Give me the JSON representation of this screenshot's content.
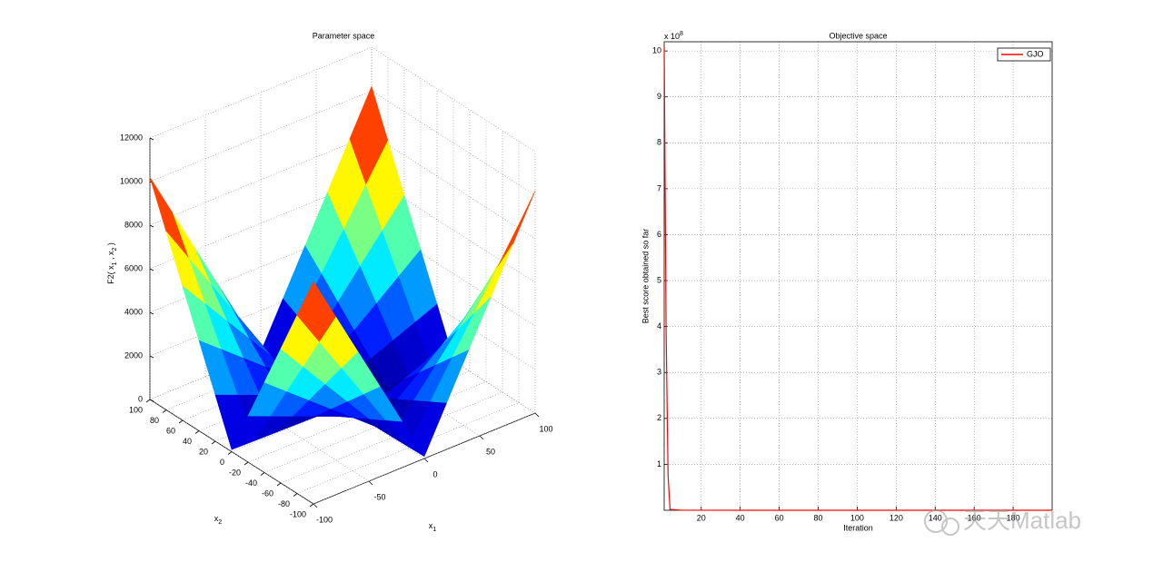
{
  "chart_data": [
    {
      "type": "surface",
      "title": "Parameter space",
      "xlabel": [
        "x",
        "1"
      ],
      "ylabel": [
        "x",
        "2"
      ],
      "zlabel": [
        "F2( x",
        "1",
        " , x",
        "2",
        " )"
      ],
      "x": [
        -100,
        -80,
        -60,
        -40,
        -20,
        0,
        20,
        40,
        60,
        80,
        100
      ],
      "y": [
        -100,
        -80,
        -60,
        -40,
        -20,
        0,
        20,
        40,
        60,
        80,
        100
      ],
      "z": [
        [
          10200,
          8180,
          6160,
          4140,
          2120,
          100,
          2120,
          4140,
          6160,
          8180,
          10200
        ],
        [
          8180,
          6560,
          4940,
          3320,
          1700,
          80,
          1700,
          3320,
          4940,
          6560,
          8180
        ],
        [
          6160,
          4940,
          3720,
          2500,
          1280,
          60,
          1280,
          2500,
          3720,
          4940,
          6160
        ],
        [
          4140,
          3320,
          2500,
          1680,
          860,
          40,
          860,
          1680,
          2500,
          3320,
          4140
        ],
        [
          2120,
          1700,
          1280,
          860,
          440,
          20,
          440,
          860,
          1280,
          1700,
          2120
        ],
        [
          100,
          80,
          60,
          40,
          20,
          0,
          20,
          40,
          60,
          80,
          100
        ],
        [
          2120,
          1700,
          1280,
          860,
          440,
          20,
          440,
          860,
          1280,
          1700,
          2120
        ],
        [
          4140,
          3320,
          2500,
          1680,
          860,
          40,
          860,
          1680,
          2500,
          3320,
          4140
        ],
        [
          6160,
          4940,
          3720,
          2500,
          1280,
          60,
          1280,
          2500,
          3720,
          4940,
          6160
        ],
        [
          8180,
          6560,
          4940,
          3320,
          1700,
          80,
          1700,
          3320,
          4940,
          6560,
          8180
        ],
        [
          10200,
          8180,
          6160,
          4140,
          2120,
          100,
          2120,
          4140,
          6160,
          8180,
          10200
        ]
      ],
      "xlim": [
        -100,
        100
      ],
      "ylim": [
        -100,
        100
      ],
      "zlim": [
        0,
        12000
      ],
      "xticks": [
        -100,
        -50,
        0,
        50,
        100
      ],
      "yticks": [
        -100,
        -80,
        -60,
        -40,
        -20,
        0,
        20,
        40,
        60,
        80,
        100
      ],
      "zticks": [
        0,
        2000,
        4000,
        6000,
        8000,
        10000,
        12000
      ],
      "grid": true,
      "colormap": "jet"
    },
    {
      "type": "line",
      "title": "Objective space",
      "xlabel": "Iteration",
      "ylabel": "Best score obtained so far",
      "y_multiplier": [
        "x 10",
        "8"
      ],
      "x": [
        1,
        2,
        3,
        4,
        10,
        50,
        100,
        200
      ],
      "series": [
        {
          "name": "GJO",
          "color": "#ff0000",
          "values": [
            10.1,
            3.85,
            0.75,
            0.02,
            0.001,
            0,
            0,
            0
          ]
        }
      ],
      "xlim": [
        1,
        200
      ],
      "ylim": [
        0,
        10.2
      ],
      "xticks": [
        20,
        40,
        60,
        80,
        100,
        120,
        140,
        160,
        180
      ],
      "yticks": [
        1,
        2,
        3,
        4,
        5,
        6,
        7,
        8,
        9,
        10
      ],
      "grid": true,
      "legend": "top-right"
    }
  ],
  "watermark": "天天Matlab"
}
